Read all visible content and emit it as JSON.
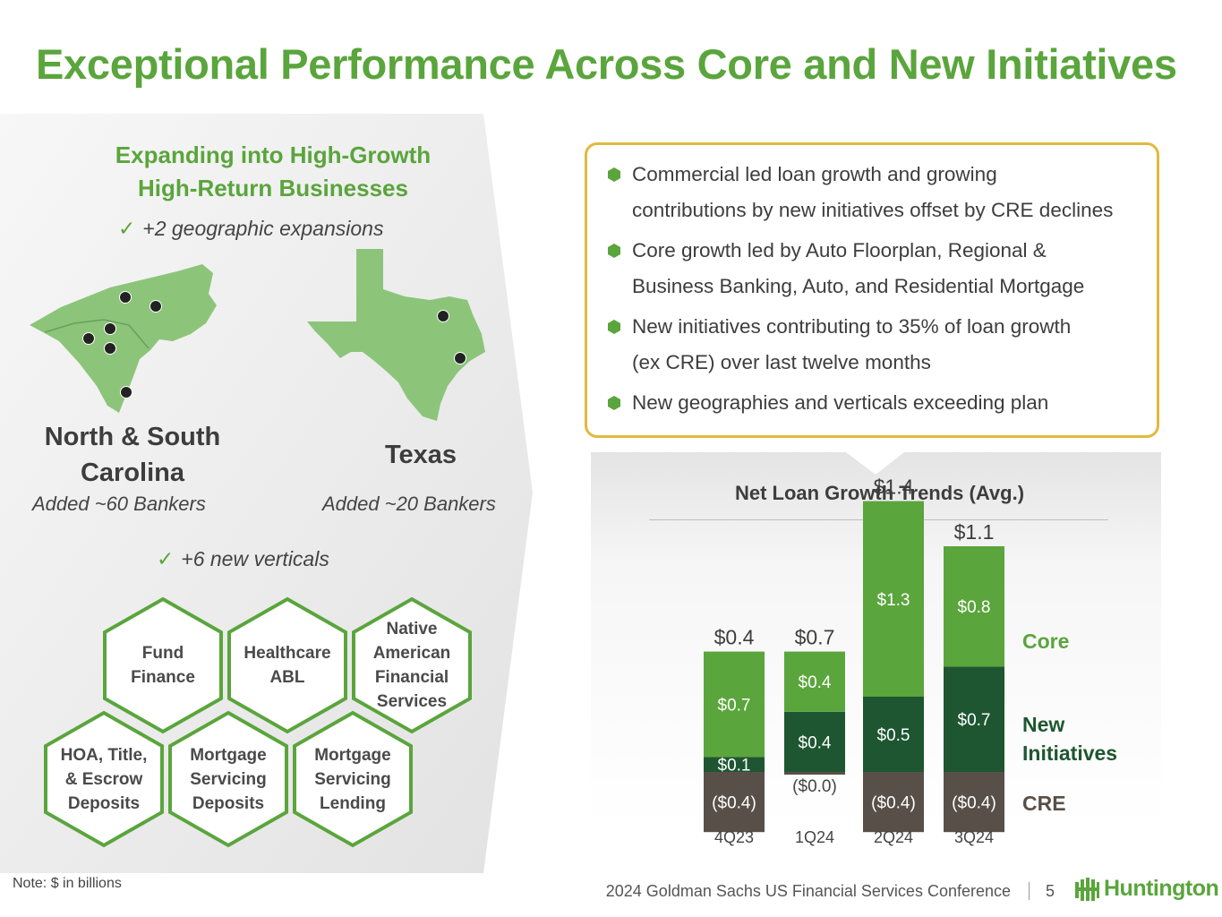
{
  "title": "Exceptional Performance Across Core and New Initiatives",
  "left": {
    "heading_line1": "Expanding into High-Growth",
    "heading_line2": "High-Return Businesses",
    "geo_check": "+2 geographic expansions",
    "verticals_check": "+6 new verticals",
    "regions": [
      {
        "name_line1": "North & South",
        "name_line2": "Carolina",
        "sub": "Added ~60 Bankers"
      },
      {
        "name_line1": "Texas",
        "name_line2": "",
        "sub": "Added ~20 Bankers"
      }
    ],
    "verticals": [
      {
        "line1": "Fund",
        "line2": "Finance",
        "line3": "",
        "line4": ""
      },
      {
        "line1": "Healthcare",
        "line2": "ABL",
        "line3": "",
        "line4": ""
      },
      {
        "line1": "Native",
        "line2": "American",
        "line3": "Financial",
        "line4": "Services"
      },
      {
        "line1": "HOA, Title,",
        "line2": "& Escrow",
        "line3": "Deposits",
        "line4": ""
      },
      {
        "line1": "Mortgage",
        "line2": "Servicing",
        "line3": "Deposits",
        "line4": ""
      },
      {
        "line1": "Mortgage",
        "line2": "Servicing",
        "line3": "Lending",
        "line4": ""
      }
    ]
  },
  "bullets": [
    {
      "line1": "Commercial led loan growth and growing",
      "line2": "contributions by new initiatives offset by CRE declines"
    },
    {
      "line1": "Core growth led by Auto Floorplan, Regional &",
      "line2": "Business Banking, Auto, and Residential Mortgage"
    },
    {
      "line1": "New initiatives contributing to 35% of loan growth",
      "line2": "(ex CRE) over last twelve months"
    },
    {
      "line1": "New geographies and verticals exceeding plan",
      "line2": ""
    }
  ],
  "chart_data": {
    "type": "bar",
    "stacked": true,
    "title": "Net Loan Growth Trends (Avg.)",
    "categories": [
      "4Q23",
      "1Q24",
      "2Q24",
      "3Q24"
    ],
    "series": [
      {
        "name": "Core",
        "values": [
          0.7,
          0.4,
          1.3,
          0.8
        ],
        "labels": [
          "$0.7",
          "$0.4",
          "$1.3",
          "$0.8"
        ],
        "color": "#5aa53c"
      },
      {
        "name": "New Initiatives",
        "values": [
          0.1,
          0.4,
          0.5,
          0.7
        ],
        "labels": [
          "$0.1",
          "$0.4",
          "$0.5",
          "$0.7"
        ],
        "color": "#1e5631"
      },
      {
        "name": "CRE",
        "values": [
          -0.4,
          -0.0,
          -0.4,
          -0.4
        ],
        "labels": [
          "($0.4)",
          "($0.0)",
          "($0.4)",
          "($0.4)"
        ],
        "color": "#585048"
      }
    ],
    "totals": [
      "$0.4",
      "$0.7",
      "$1.4",
      "$1.1"
    ],
    "legend_placement": "right",
    "legend": [
      {
        "line1": "Core",
        "line2": ""
      },
      {
        "line1": "New",
        "line2": "Initiatives"
      },
      {
        "line1": "CRE",
        "line2": ""
      }
    ]
  },
  "colors": {
    "brand_green": "#5aa53c",
    "dark_green": "#1e5631",
    "cre_gray": "#585048",
    "callout_border": "#e2b93b",
    "map_green": "#8cc57a"
  },
  "footer": {
    "note": "Note: $ in billions",
    "conference": "2024 Goldman Sachs US Financial Services Conference",
    "page": "5",
    "logo": "Huntington"
  }
}
